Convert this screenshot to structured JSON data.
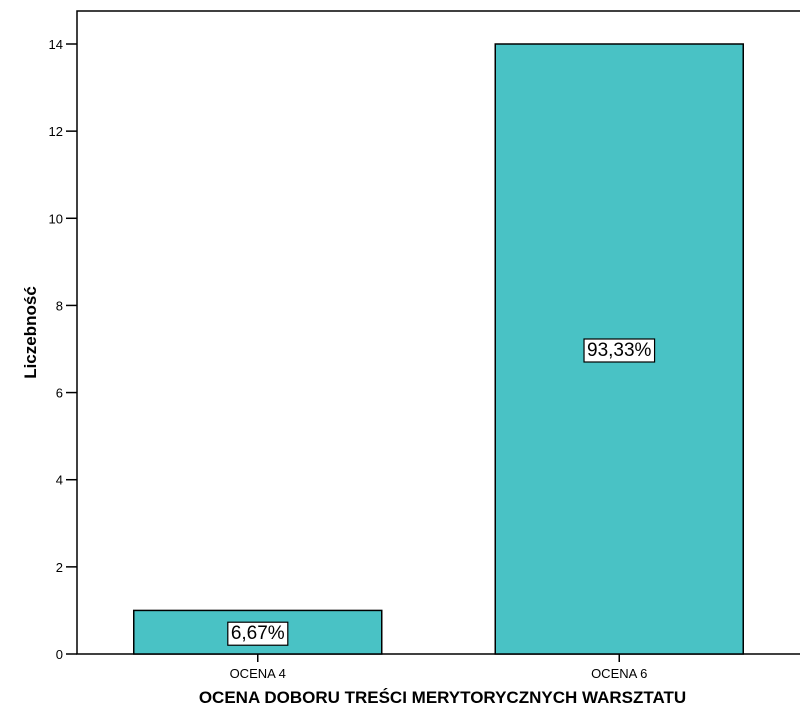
{
  "chart_data": {
    "type": "bar",
    "categories": [
      "OCENA 4",
      "OCENA 6"
    ],
    "values": [
      1,
      14
    ],
    "data_labels": [
      "6,67%",
      "93,33%"
    ],
    "xlabel": "OCENA DOBORU TREŚCI MERYTORYCZNYCH WARSZTATU",
    "ylabel": "Liczebność",
    "ylim": [
      0,
      14
    ],
    "yticks": [
      0,
      2,
      4,
      6,
      8,
      10,
      12,
      14
    ],
    "ytick_labels": [
      "0",
      "2",
      "4",
      "6",
      "8",
      "10",
      "12",
      "14"
    ],
    "grid": false,
    "legend": "none",
    "colors": {
      "bar_fill": "#49c2c5",
      "bar_stroke": "#000000",
      "axis": "#000000"
    }
  }
}
